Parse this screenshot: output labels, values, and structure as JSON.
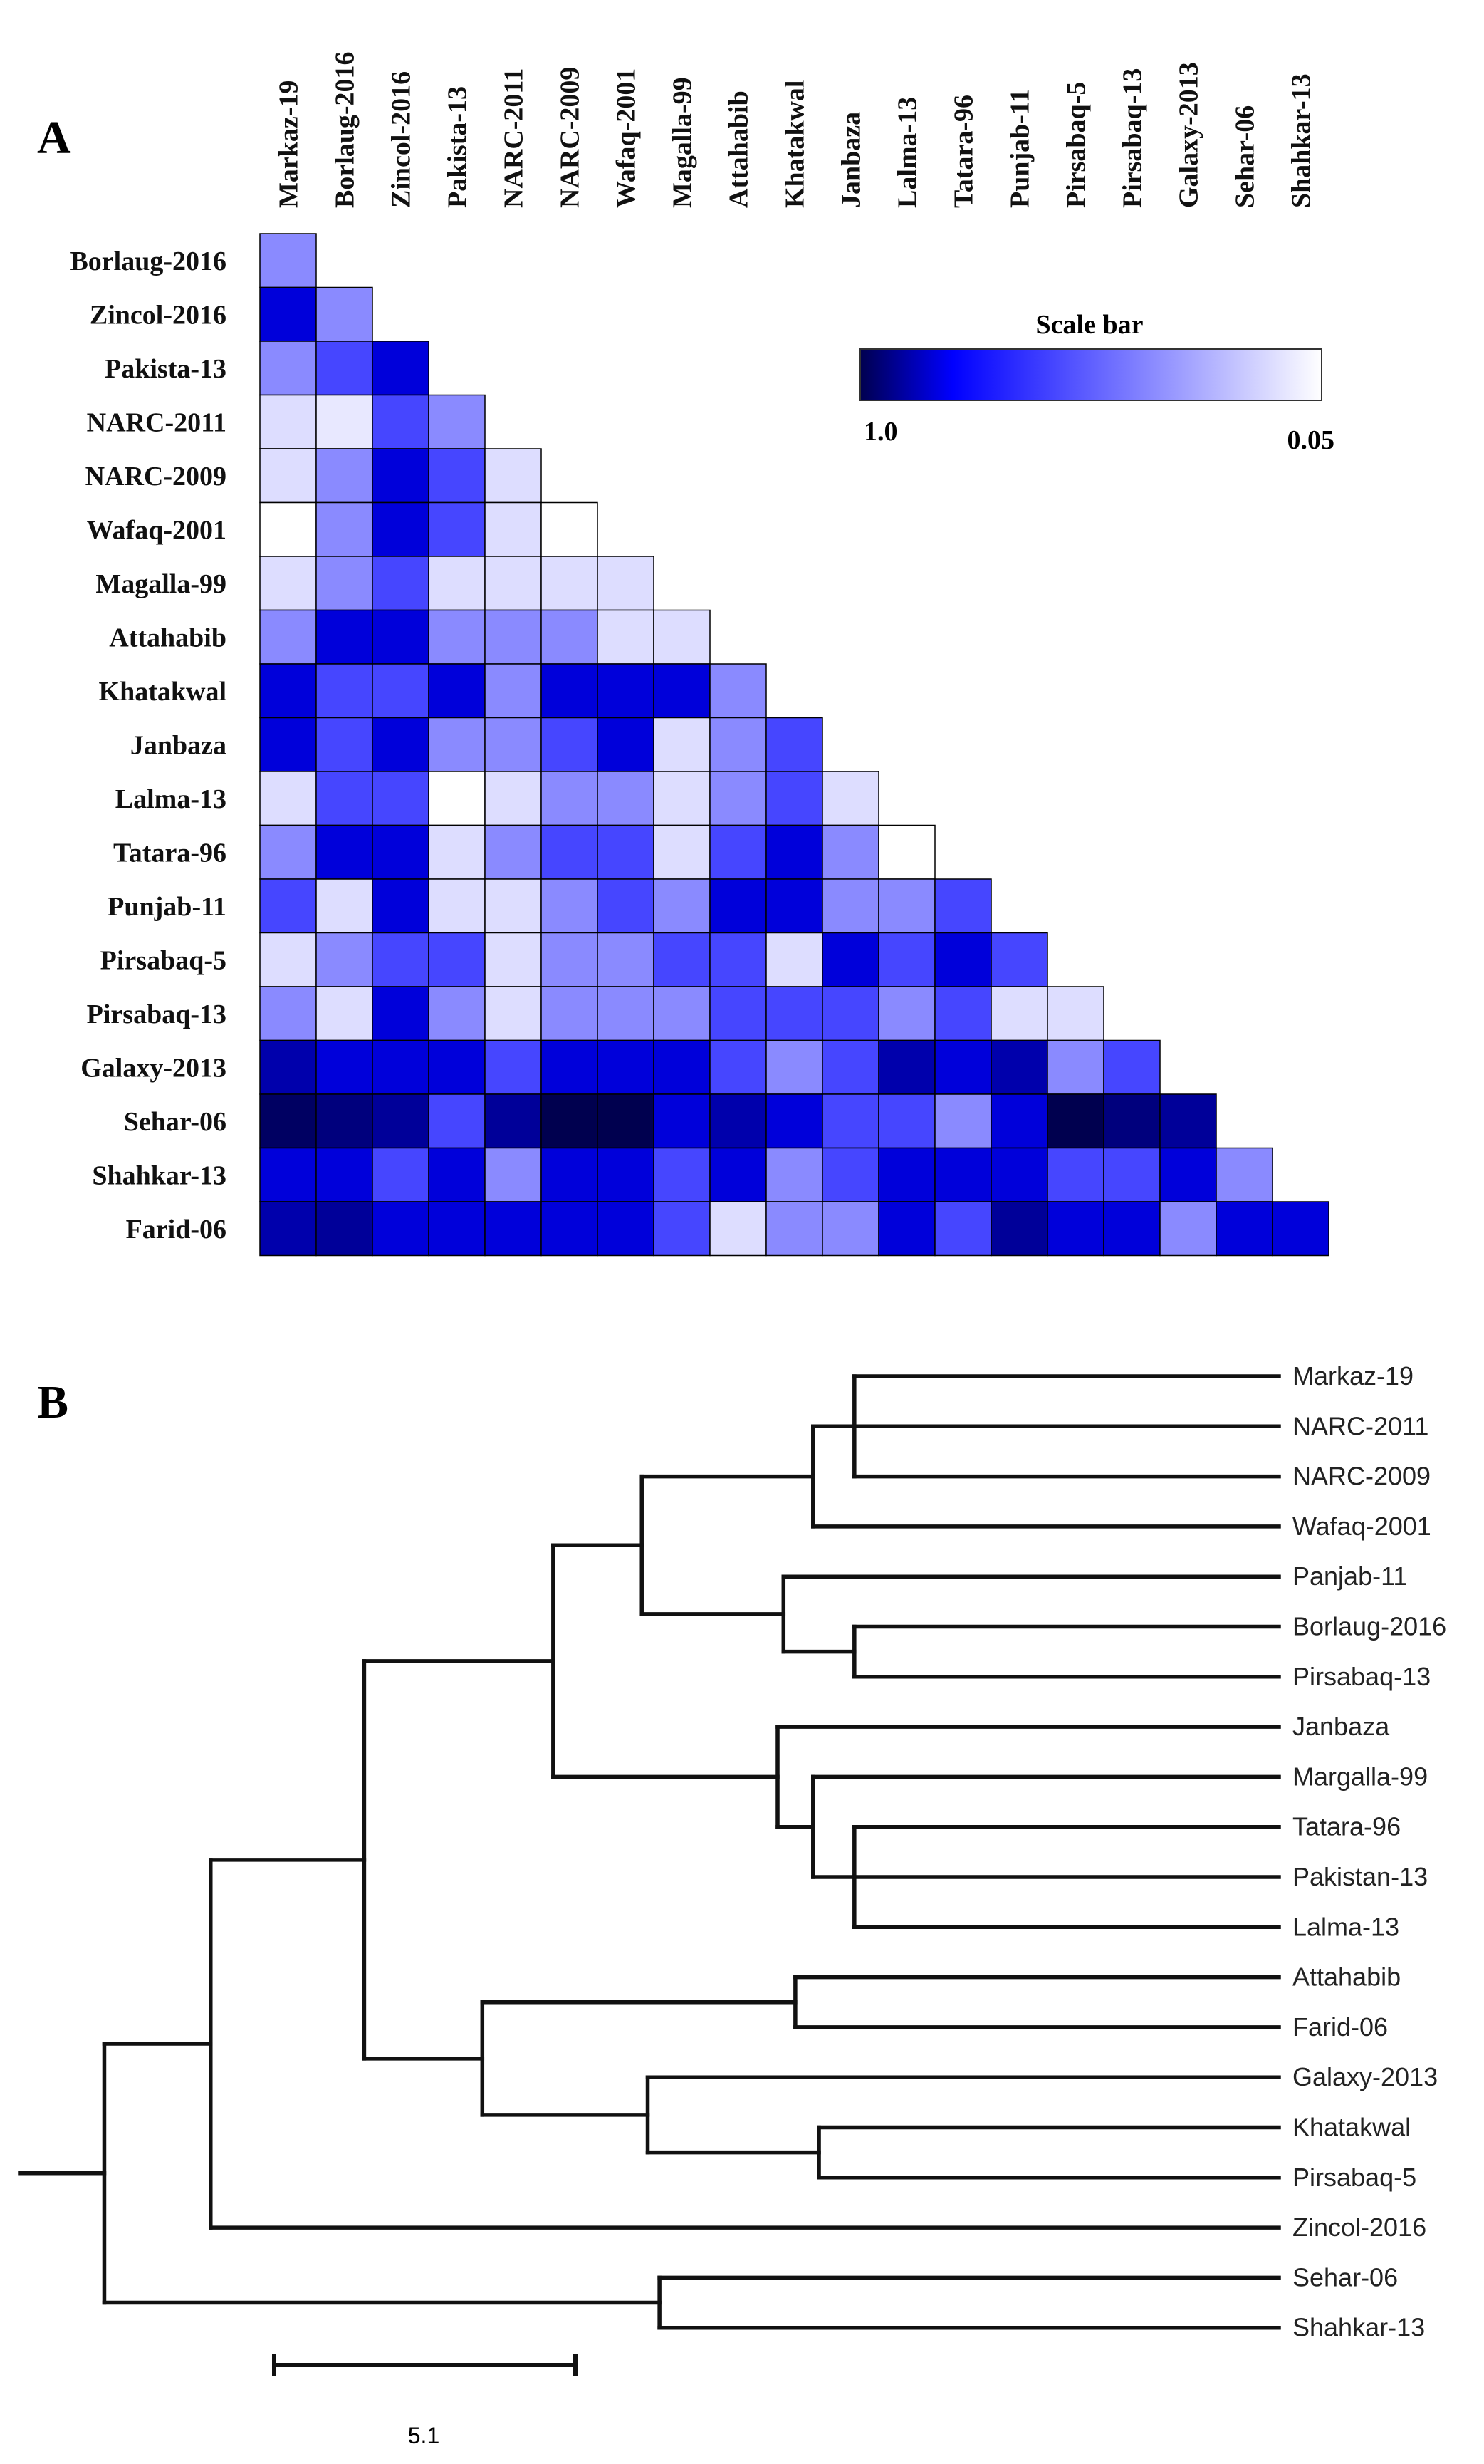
{
  "panel_a": {
    "label": "A",
    "scale_bar": {
      "title": "Scale bar",
      "min_label": "1.0",
      "max_label": "0.05",
      "colors": [
        "#00004f",
        "#0000ff",
        "#ffffff"
      ]
    }
  },
  "panel_b": {
    "label": "B",
    "scale": {
      "value": 5.1,
      "label": "5.1"
    }
  },
  "chart_data": [
    {
      "type": "heatmap",
      "title": "Scale bar",
      "value_range": [
        0.05,
        1.0
      ],
      "color_low": "#ffffff",
      "color_high": "#00004f",
      "columns": [
        "Markaz-19",
        "Borlaug-2016",
        "Zincol-2016",
        "Pakista-13",
        "NARC-2011",
        "NARC-2009",
        "Wafaq-2001",
        "Magalla-99",
        "Attahabib",
        "Khatakwal",
        "Janbaza",
        "Lalma-13",
        "Tatara-96",
        "Punjab-11",
        "Pirsabaq-5",
        "Pirsabaq-13",
        "Galaxy-2013",
        "Sehar-06",
        "Shahkar-13"
      ],
      "rows": [
        "Borlaug-2016",
        "Zincol-2016",
        "Pakista-13",
        "NARC-2011",
        "NARC-2009",
        "Wafaq-2001",
        "Magalla-99",
        "Attahabib",
        "Khatakwal",
        "Janbaza",
        "Lalma-13",
        "Tatara-96",
        "Punjab-11",
        "Pirsabaq-5",
        "Pirsabaq-13",
        "Galaxy-2013",
        "Sehar-06",
        "Shahkar-13",
        "Farid-06"
      ],
      "values": [
        [
          0.4
        ],
        [
          0.85,
          0.4
        ],
        [
          0.4,
          0.6,
          0.85
        ],
        [
          0.15,
          0.12,
          0.6,
          0.4
        ],
        [
          0.15,
          0.4,
          0.85,
          0.6,
          0.15
        ],
        [
          0.05,
          0.4,
          0.85,
          0.6,
          0.15,
          0.05
        ],
        [
          0.15,
          0.4,
          0.6,
          0.15,
          0.15,
          0.15,
          0.15
        ],
        [
          0.4,
          0.85,
          0.85,
          0.4,
          0.4,
          0.4,
          0.15,
          0.15
        ],
        [
          0.85,
          0.6,
          0.6,
          0.85,
          0.4,
          0.85,
          0.85,
          0.85,
          0.4
        ],
        [
          0.85,
          0.6,
          0.85,
          0.4,
          0.4,
          0.6,
          0.85,
          0.15,
          0.4,
          0.6
        ],
        [
          0.15,
          0.6,
          0.6,
          0.05,
          0.15,
          0.4,
          0.4,
          0.15,
          0.4,
          0.6,
          0.15
        ],
        [
          0.4,
          0.85,
          0.85,
          0.15,
          0.4,
          0.6,
          0.6,
          0.15,
          0.6,
          0.85,
          0.4,
          0.05
        ],
        [
          0.6,
          0.15,
          0.85,
          0.15,
          0.15,
          0.4,
          0.6,
          0.4,
          0.85,
          0.85,
          0.4,
          0.4,
          0.6
        ],
        [
          0.15,
          0.4,
          0.6,
          0.6,
          0.15,
          0.4,
          0.4,
          0.6,
          0.6,
          0.15,
          0.85,
          0.6,
          0.85,
          0.6
        ],
        [
          0.4,
          0.15,
          0.85,
          0.4,
          0.15,
          0.4,
          0.4,
          0.4,
          0.6,
          0.6,
          0.6,
          0.4,
          0.6,
          0.15,
          0.15
        ],
        [
          0.9,
          0.85,
          0.85,
          0.85,
          0.6,
          0.85,
          0.85,
          0.85,
          0.6,
          0.4,
          0.6,
          0.9,
          0.85,
          0.9,
          0.4,
          0.6
        ],
        [
          0.98,
          0.95,
          0.92,
          0.6,
          0.92,
          1.0,
          1.0,
          0.85,
          0.9,
          0.85,
          0.6,
          0.6,
          0.4,
          0.85,
          1.0,
          0.95,
          0.92
        ],
        [
          0.85,
          0.85,
          0.6,
          0.85,
          0.4,
          0.85,
          0.85,
          0.6,
          0.85,
          0.4,
          0.6,
          0.85,
          0.85,
          0.85,
          0.6,
          0.6,
          0.85,
          0.4
        ],
        [
          0.9,
          0.92,
          0.85,
          0.85,
          0.85,
          0.85,
          0.85,
          0.6,
          0.15,
          0.4,
          0.4,
          0.85,
          0.6,
          0.92,
          0.85,
          0.85,
          0.4,
          0.85,
          0.85
        ]
      ]
    },
    {
      "type": "dendrogram",
      "leaves": [
        "Markaz-19",
        "NARC-2011",
        "NARC-2009",
        "Wafaq-2001",
        "Panjab-11",
        "Borlaug-2016",
        "Pirsabaq-13",
        "Janbaza",
        "Margalla-99",
        "Tatara-96",
        "Pakistan-13",
        "Lalma-13",
        "Attahabib",
        "Farid-06",
        "Galaxy-2013",
        "Khatakwal",
        "Pirsabaq-5",
        "Zincol-2016",
        "Sehar-06",
        "Shahkar-13"
      ],
      "scale_length": 5.1,
      "root_position": 0.0,
      "tree": {
        "h": 0.5,
        "c": [
          {
            "h": 2.3,
            "c": [
              {
                "h": 4.9,
                "c": [
                  {
                    "h": 8.1,
                    "c": [
                      {
                        "h": 9.6,
                        "c": [
                          {
                            "h": 12.5,
                            "c": [
                              {
                                "h": 13.2,
                                "c": [
                                  "Markaz-19",
                                  "NARC-2011",
                                  "NARC-2009"
                                ]
                              },
                              "Wafaq-2001"
                            ]
                          },
                          {
                            "h": 12.0,
                            "c": [
                              "Panjab-11",
                              {
                                "h": 13.2,
                                "c": [
                                  "Borlaug-2016",
                                  "Pirsabaq-13"
                                ]
                              }
                            ]
                          }
                        ]
                      },
                      {
                        "h": 11.9,
                        "c": [
                          "Janbaza",
                          {
                            "h": 12.5,
                            "c": [
                              "Margalla-99",
                              {
                                "h": 13.2,
                                "c": [
                                  "Tatara-96",
                                  "Pakistan-13",
                                  "Lalma-13"
                                ]
                              }
                            ]
                          }
                        ]
                      }
                    ]
                  },
                  {
                    "h": 6.9,
                    "c": [
                      {
                        "h": 12.2,
                        "c": [
                          "Attahabib",
                          "Farid-06"
                        ]
                      },
                      {
                        "h": 9.7,
                        "c": [
                          "Galaxy-2013",
                          {
                            "h": 12.6,
                            "c": [
                              "Khatakwal",
                              "Pirsabaq-5"
                            ]
                          }
                        ]
                      }
                    ]
                  }
                ]
              },
              "Zincol-2016"
            ]
          },
          {
            "h": 9.9,
            "c": [
              "Sehar-06",
              "Shahkar-13"
            ]
          }
        ]
      }
    }
  ]
}
